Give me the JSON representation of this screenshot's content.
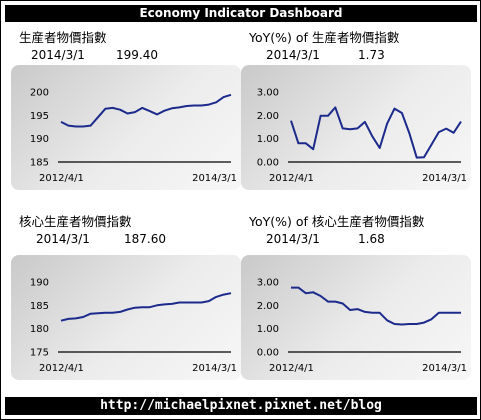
{
  "header": {
    "title": "Economy Indicator Dashboard"
  },
  "footer": {
    "url": "http://michaelpixnet.pixnet.net/blog"
  },
  "colors": {
    "line": "#1c2a8c",
    "axis": "#000000",
    "bar": "#000000"
  },
  "panels": [
    {
      "title": "生産者物價指數",
      "date": "2014/3/1",
      "value": "199.40"
    },
    {
      "title": "YoY(%) of 生産者物價指數",
      "date": "2014/3/1",
      "value": "1.73"
    },
    {
      "title": "核心生産者物價指數",
      "date": "2014/3/1",
      "value": "187.60"
    },
    {
      "title": "YoY(%) of 核心生産者物價指數",
      "date": "2014/3/1",
      "value": "1.68"
    }
  ],
  "chart_data": [
    {
      "type": "line",
      "x_start_label": "2012/4/1",
      "x_end_label": "2014/3/1",
      "ylim": [
        185,
        200
      ],
      "yticks": [
        "185",
        "190",
        "195",
        "200"
      ],
      "grid": false,
      "values": [
        193.6,
        192.8,
        192.6,
        192.6,
        192.8,
        194.6,
        196.4,
        196.6,
        196.2,
        195.4,
        195.7,
        196.6,
        195.9,
        195.2,
        196.0,
        196.5,
        196.7,
        197.0,
        197.1,
        197.1,
        197.3,
        197.8,
        198.9,
        199.4
      ]
    },
    {
      "type": "line",
      "x_start_label": "2012/4/1",
      "x_end_label": "2014/3/1",
      "ylim": [
        0,
        3
      ],
      "yticks": [
        "0.00",
        "1.00",
        "2.00",
        "3.00"
      ],
      "grid": false,
      "values": [
        1.77,
        0.8,
        0.8,
        0.55,
        1.98,
        1.98,
        2.34,
        1.44,
        1.4,
        1.44,
        1.72,
        1.1,
        0.6,
        1.64,
        2.29,
        2.1,
        1.24,
        0.19,
        0.2,
        0.74,
        1.28,
        1.43,
        1.25,
        1.73
      ]
    },
    {
      "type": "line",
      "x_start_label": "2012/4/1",
      "x_end_label": "2014/3/1",
      "ylim": [
        175,
        190
      ],
      "yticks": [
        "175",
        "180",
        "185",
        "190"
      ],
      "grid": false,
      "values": [
        181.7,
        182.1,
        182.2,
        182.5,
        183.2,
        183.3,
        183.4,
        183.4,
        183.6,
        184.1,
        184.5,
        184.6,
        184.6,
        185.0,
        185.2,
        185.3,
        185.6,
        185.6,
        185.6,
        185.6,
        185.9,
        186.8,
        187.3,
        187.6
      ]
    },
    {
      "type": "line",
      "x_start_label": "2012/4/1",
      "x_end_label": "2014/3/1",
      "ylim": [
        0,
        3
      ],
      "yticks": [
        "0.00",
        "1.00",
        "2.00",
        "3.00"
      ],
      "grid": false,
      "values": [
        2.76,
        2.76,
        2.52,
        2.56,
        2.4,
        2.16,
        2.16,
        2.08,
        1.8,
        1.84,
        1.72,
        1.68,
        1.68,
        1.36,
        1.2,
        1.18,
        1.2,
        1.2,
        1.26,
        1.4,
        1.68,
        1.68,
        1.68,
        1.68
      ]
    }
  ]
}
